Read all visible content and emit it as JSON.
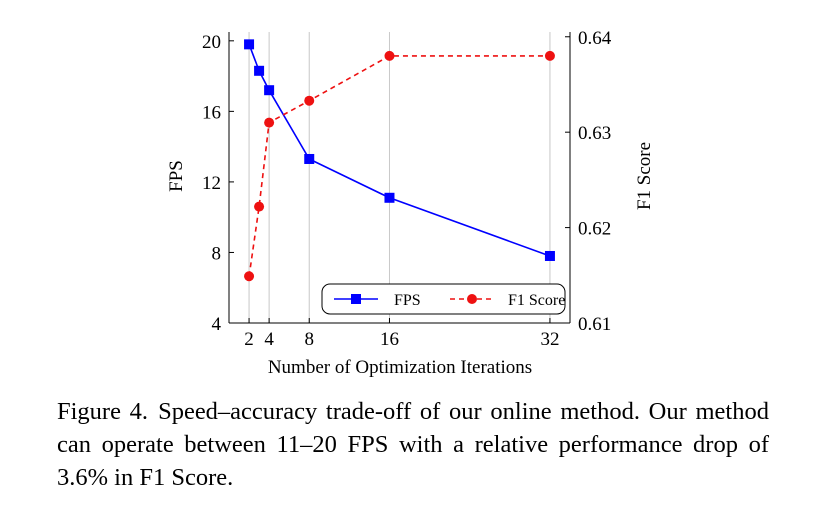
{
  "chart_data": {
    "type": "line",
    "xlabel": "Number of Optimization Iterations",
    "x_ticks": [
      2,
      4,
      8,
      16,
      32
    ],
    "x_range": [
      0,
      34
    ],
    "vertical_grid": true,
    "legend_position": "bottom-right",
    "y_left": {
      "label": "FPS",
      "ticks": [
        4,
        8,
        12,
        16,
        20
      ],
      "range": [
        4,
        20.5
      ]
    },
    "y_right": {
      "label": "F1 Score",
      "ticks": [
        "0.61",
        "0.62",
        "0.63",
        "0.64"
      ],
      "range": [
        0.61,
        0.6405
      ]
    },
    "series": [
      {
        "name": "FPS",
        "axis": "left",
        "color": "#0000ff",
        "marker": "square",
        "line_style": "solid",
        "x": [
          2,
          3,
          4,
          8,
          16,
          32
        ],
        "values": [
          19.8,
          18.3,
          17.2,
          13.3,
          11.1,
          7.8
        ]
      },
      {
        "name": "F1 Score",
        "axis": "right",
        "color": "#ee1111",
        "marker": "circle",
        "line_style": "dashed",
        "x": [
          2,
          3,
          4,
          8,
          16,
          32
        ],
        "values": [
          0.6149,
          0.6222,
          0.631,
          0.6333,
          0.638,
          0.638
        ]
      }
    ]
  },
  "caption": {
    "label": "Figure 4.",
    "text": "Speed–accuracy trade-off of our online method. Our method can operate between 11–20 FPS with a relative performance drop of 3.6% in F1 Score."
  }
}
